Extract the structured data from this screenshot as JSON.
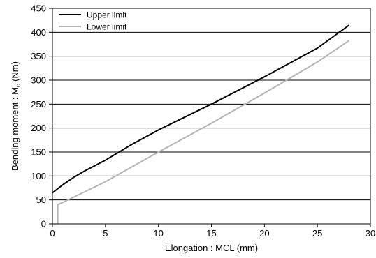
{
  "chart_data": {
    "type": "line",
    "title": "",
    "xlabel": "Elongation : MCL (mm)",
    "ylabel": {
      "before": "Bending moment : M",
      "subscript": "c",
      "after": " (Nm)"
    },
    "xlim": [
      0,
      30
    ],
    "ylim": [
      0,
      450
    ],
    "xticks": [
      0,
      5,
      10,
      15,
      20,
      25,
      30
    ],
    "yticks": [
      0,
      50,
      100,
      150,
      200,
      250,
      300,
      350,
      400,
      450
    ],
    "grid": {
      "horizontal": true,
      "vertical": false
    },
    "legend_position": "top-left",
    "series": [
      {
        "name": "Upper limit",
        "color": "#000000",
        "points": [
          [
            0,
            65
          ],
          [
            1,
            82
          ],
          [
            2,
            97
          ],
          [
            3,
            110
          ],
          [
            5,
            133
          ],
          [
            7.5,
            166
          ],
          [
            10,
            196
          ],
          [
            15,
            250
          ],
          [
            20,
            307
          ],
          [
            25,
            367
          ],
          [
            28,
            415
          ]
        ]
      },
      {
        "name": "Lower limit",
        "color": "#b4b4b4",
        "points": [
          [
            0.5,
            0
          ],
          [
            0.5,
            40
          ],
          [
            1,
            45
          ],
          [
            5,
            88
          ],
          [
            10,
            150
          ],
          [
            15,
            210
          ],
          [
            20,
            273
          ],
          [
            25,
            338
          ],
          [
            28,
            383
          ]
        ]
      }
    ]
  }
}
